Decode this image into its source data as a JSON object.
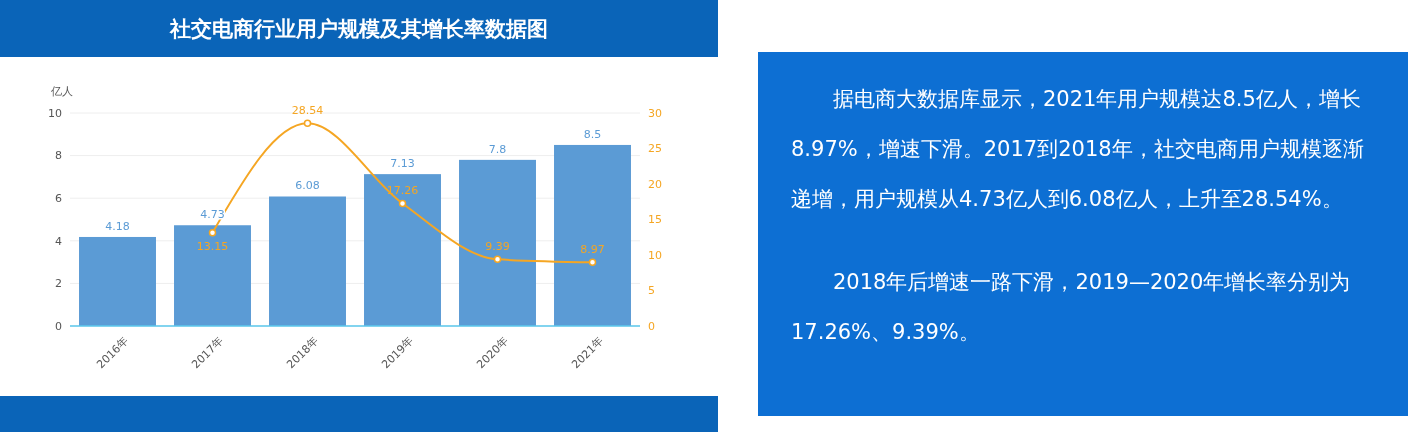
{
  "chart_data": [
    {
      "type": "bar",
      "title": "社交电商行业用户规模及其增长率数据图",
      "ylabel": "亿人",
      "categories": [
        "2016年",
        "2017年",
        "2018年",
        "2019年",
        "2020年",
        "2021年"
      ],
      "series": [
        {
          "type": "bar",
          "color": "#5b9bd5",
          "values": [
            4.18,
            4.73,
            6.08,
            7.13,
            7.8,
            8.5
          ]
        },
        {
          "type": "line",
          "axis": "y2",
          "color": "#f5a623",
          "values": [
            null,
            13.15,
            28.54,
            17.26,
            9.39,
            8.97
          ]
        }
      ],
      "ylim": [
        0,
        10
      ],
      "yticks": [
        0,
        2,
        4,
        6,
        8,
        10
      ],
      "y2lim": [
        0,
        30
      ],
      "y2ticks": [
        0,
        5,
        10,
        15,
        20,
        25,
        30
      ],
      "grid": "y",
      "data_labels": true,
      "marker": "circle"
    },
    {
      "type": "other",
      "annotations": [
        "据电商大数据库显示，2021年用户规模达8.5亿人，增长8.97%，增速下滑。2017到2018年，社交电商用户规模逐渐递增，用户规模从4.73亿人到6.08亿人，上升至28.54%。",
        "2018年后增速一路下滑，2019—2020年增长率分别为17.26%、9.39%。"
      ]
    }
  ]
}
